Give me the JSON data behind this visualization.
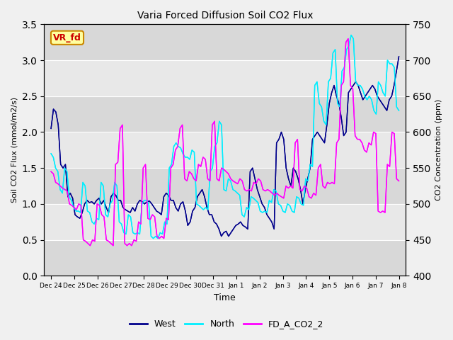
{
  "title": "Varia Forced Diffusion Soil CO2 Flux",
  "xlabel": "Time",
  "ylabel_left": "Soil CO2 Flux (mmol/m2/s)",
  "ylabel_right": "CO2 Concentration (ppm)",
  "ylim_left": [
    0.0,
    3.5
  ],
  "ylim_right": [
    400,
    750
  ],
  "fig_bg_color": "#f0f0f0",
  "plot_bg_color": "#e8e8e8",
  "label_box_text": "VR_fd",
  "label_box_color": "#ffffa0",
  "label_box_edge": "#cc8800",
  "label_text_color": "#cc0000",
  "west_color": "#00008B",
  "north_color": "#00EEFF",
  "fdco2_color": "#FF00FF",
  "legend_labels": [
    "West",
    "North",
    "FD_A_CO2_2"
  ],
  "xtick_labels": [
    "Dec 24",
    "Dec 25",
    "Dec 26",
    "Dec 27",
    "Dec 28",
    "Dec 29",
    "Dec 30",
    "Dec 31",
    "Jan 1",
    "Jan 2",
    "Jan 3",
    "Jan 4",
    "Jan 5",
    "Jan 6",
    "Jan 7",
    "Jan 8"
  ],
  "west_data": [
    2.05,
    2.32,
    2.28,
    2.1,
    1.55,
    1.5,
    1.55,
    1.1,
    1.15,
    1.08,
    0.85,
    0.82,
    0.8,
    0.88,
    1.0,
    1.05,
    1.02,
    1.03,
    1.0,
    1.05,
    1.08,
    1.0,
    1.05,
    0.95,
    0.88,
    1.1,
    1.15,
    1.12,
    1.05,
    1.05,
    0.95,
    0.92,
    0.9,
    0.88,
    0.95,
    0.9,
    1.0,
    1.05,
    1.03,
    1.0,
    1.03,
    1.04,
    1.0,
    0.95,
    0.9,
    0.88,
    0.85,
    1.1,
    1.15,
    1.12,
    1.05,
    1.05,
    0.95,
    0.9,
    1.0,
    1.03,
    0.9,
    0.7,
    0.75,
    0.9,
    0.95,
    1.1,
    1.15,
    1.2,
    1.1,
    0.95,
    0.85,
    0.85,
    0.75,
    0.72,
    0.65,
    0.55,
    0.6,
    0.62,
    0.55,
    0.6,
    0.65,
    0.7,
    0.72,
    0.75,
    0.7,
    0.68,
    0.65,
    1.45,
    1.5,
    1.35,
    1.2,
    1.1,
    1.0,
    0.95,
    0.85,
    0.8,
    0.75,
    0.65,
    1.85,
    1.9,
    2.0,
    1.9,
    1.5,
    1.35,
    1.25,
    1.5,
    1.45,
    1.35,
    1.2,
    1.0,
    1.2,
    1.35,
    1.5,
    1.9,
    1.95,
    2.0,
    1.95,
    1.9,
    1.85,
    2.1,
    2.4,
    2.55,
    2.65,
    2.5,
    2.4,
    2.2,
    1.95,
    2.0,
    2.55,
    2.6,
    2.65,
    2.7,
    2.65,
    2.55,
    2.45,
    2.5,
    2.55,
    2.6,
    2.65,
    2.6,
    2.5,
    2.45,
    2.4,
    2.35,
    2.3,
    2.45,
    2.5,
    2.65,
    2.85,
    3.05
  ],
  "north_data": [
    1.7,
    1.65,
    1.5,
    1.45,
    1.2,
    1.15,
    1.5,
    1.45,
    1.1,
    1.05,
    0.95,
    0.9,
    0.9,
    0.88,
    1.3,
    1.25,
    0.9,
    0.88,
    0.75,
    0.72,
    0.8,
    0.78,
    1.3,
    1.25,
    0.85,
    0.82,
    1.0,
    1.05,
    1.3,
    1.25,
    0.75,
    0.72,
    0.6,
    0.58,
    0.85,
    0.82,
    0.6,
    0.58,
    0.6,
    0.58,
    1.0,
    1.05,
    1.05,
    1.0,
    0.55,
    0.52,
    0.55,
    0.52,
    0.6,
    0.58,
    0.75,
    0.72,
    1.5,
    1.55,
    1.8,
    1.85,
    1.8,
    1.78,
    1.7,
    1.65,
    1.65,
    1.62,
    1.75,
    1.72,
    1.0,
    0.98,
    0.95,
    0.92,
    0.95,
    0.92,
    1.45,
    1.5,
    1.8,
    1.85,
    2.15,
    2.1,
    1.2,
    1.18,
    1.35,
    1.32,
    1.2,
    1.18,
    1.15,
    1.12,
    0.85,
    0.82,
    0.95,
    0.92,
    1.1,
    1.08,
    1.05,
    1.02,
    0.9,
    0.88,
    0.9,
    0.88,
    1.05,
    1.02,
    1.2,
    1.18,
    1.0,
    0.98,
    0.9,
    0.88,
    1.0,
    0.98,
    0.9,
    0.88,
    1.1,
    1.08,
    1.0,
    0.98,
    1.35,
    1.32,
    1.55,
    1.52,
    2.65,
    2.7,
    2.4,
    2.35,
    2.15,
    2.1,
    2.7,
    2.75,
    3.1,
    3.15,
    2.4,
    2.35,
    2.85,
    2.9,
    3.15,
    3.2,
    3.35,
    3.3,
    2.7,
    2.65,
    2.65,
    2.6,
    2.5,
    2.45,
    2.5,
    2.45,
    2.3,
    2.25,
    2.7,
    2.65,
    2.55,
    2.5,
    3.0,
    2.95,
    2.95,
    2.9,
    2.35,
    2.3
  ],
  "fdco2_data": [
    1.45,
    1.42,
    1.3,
    1.28,
    1.25,
    1.22,
    1.2,
    1.18,
    1.0,
    0.98,
    0.95,
    0.92,
    1.0,
    0.98,
    0.5,
    0.48,
    0.45,
    0.42,
    0.5,
    0.48,
    1.0,
    0.98,
    0.85,
    0.82,
    0.5,
    0.48,
    0.45,
    0.42,
    1.55,
    1.58,
    2.05,
    2.1,
    0.45,
    0.42,
    0.45,
    0.42,
    0.5,
    0.48,
    0.75,
    0.72,
    1.5,
    1.55,
    0.8,
    0.78,
    0.85,
    0.82,
    0.55,
    0.52,
    0.55,
    0.52,
    0.8,
    0.78,
    1.5,
    1.55,
    1.75,
    1.8,
    2.05,
    2.1,
    1.35,
    1.32,
    1.45,
    1.42,
    1.35,
    1.32,
    1.55,
    1.52,
    1.65,
    1.62,
    1.35,
    1.32,
    2.1,
    2.15,
    1.35,
    1.32,
    1.5,
    1.48,
    1.45,
    1.42,
    1.35,
    1.32,
    1.3,
    1.28,
    1.35,
    1.32,
    1.2,
    1.18,
    1.2,
    1.18,
    1.3,
    1.28,
    1.35,
    1.32,
    1.2,
    1.18,
    1.2,
    1.18,
    1.15,
    1.12,
    1.15,
    1.12,
    1.1,
    1.08,
    1.25,
    1.22,
    1.25,
    1.22,
    1.85,
    1.9,
    1.2,
    1.18,
    1.25,
    1.22,
    1.1,
    1.08,
    1.15,
    1.12,
    1.5,
    1.55,
    1.25,
    1.22,
    1.3,
    1.28,
    1.3,
    1.28,
    1.85,
    1.9,
    2.65,
    2.7,
    3.25,
    3.3,
    2.65,
    2.6,
    1.95,
    1.9,
    1.9,
    1.85,
    1.75,
    1.72,
    1.85,
    1.82,
    2.0,
    1.98,
    0.9,
    0.88,
    0.9,
    0.88,
    1.55,
    1.52,
    2.0,
    1.98,
    1.35,
    1.32
  ]
}
